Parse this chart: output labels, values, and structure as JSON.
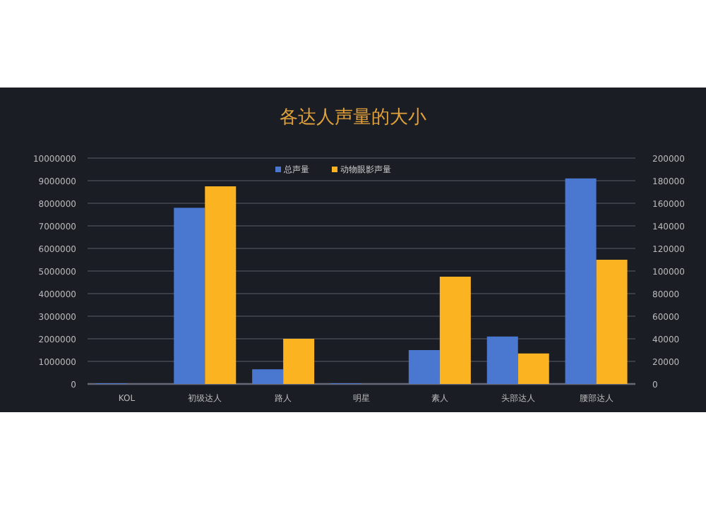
{
  "chart_data": {
    "type": "bar",
    "title": "各达人声量的大小",
    "categories": [
      "KOL",
      "初级达人",
      "路人",
      "明星",
      "素人",
      "头部达人",
      "腰部达人"
    ],
    "series": [
      {
        "name": "总声量",
        "color": "#4a78d0",
        "values": [
          30000,
          7800000,
          650000,
          30000,
          1500000,
          2100000,
          9100000
        ]
      },
      {
        "name": "动物眼影声量",
        "color": "#fbb322",
        "axis": "y2",
        "values": [
          0,
          175000,
          40000,
          0,
          95000,
          27000,
          110000
        ]
      }
    ],
    "ylim": [
      0,
      10000000
    ],
    "yticks": [
      0,
      1000000,
      2000000,
      3000000,
      4000000,
      5000000,
      6000000,
      7000000,
      8000000,
      9000000,
      10000000
    ],
    "y2lim": [
      0,
      200000
    ],
    "y2ticks": [
      0,
      20000,
      40000,
      60000,
      80000,
      100000,
      120000,
      140000,
      160000,
      180000,
      200000
    ],
    "grid": "y",
    "legend": "top"
  }
}
